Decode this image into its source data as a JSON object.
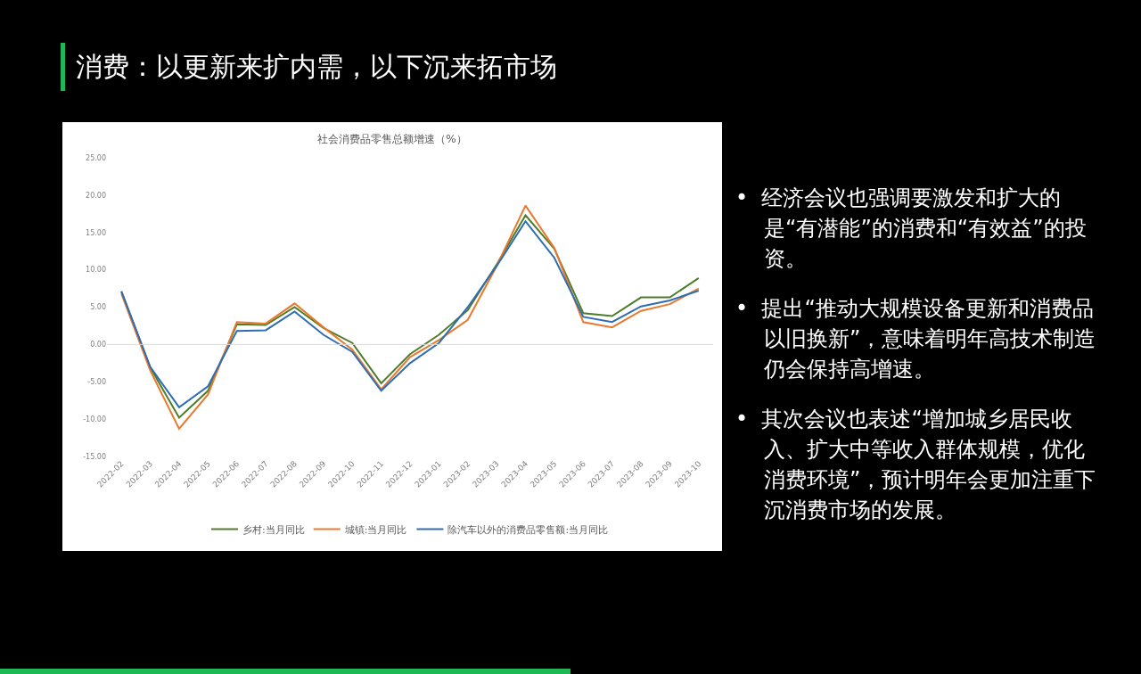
{
  "chart_data": [
    {
      "type": "line",
      "title": "消费：以更新来扩内需，以下沉来拓市场",
      "subtitle": "社会消费品零售总额增速（%）",
      "categories": [
        "2022-02",
        "2022-03",
        "2022-04",
        "2022-05",
        "2022-06",
        "2022-07",
        "2022-08",
        "2022-09",
        "2022-10",
        "2022-11",
        "2022-12",
        "2023-01",
        "2023-02",
        "2023-03",
        "2023-04",
        "2023-05",
        "2023-06",
        "2023-07",
        "2023-08",
        "2023-09",
        "2023-10"
      ],
      "series": [
        {
          "name": "乡村:当月同比",
          "color": "#4e7d2a",
          "values": [
            7.1,
            -3.1,
            -9.8,
            -6.2,
            2.7,
            2.6,
            5.0,
            2.2,
            0.2,
            -5.2,
            -1.3,
            1.3,
            4.6,
            10.7,
            17.3,
            12.8,
            4.2,
            3.8,
            6.3,
            6.3,
            8.9
          ]
        },
        {
          "name": "城镇:当月同比",
          "color": "#e8792e",
          "values": [
            6.8,
            -3.5,
            -11.3,
            -6.7,
            3.0,
            2.8,
            5.5,
            2.3,
            -0.7,
            -6.0,
            -1.7,
            0.6,
            3.3,
            10.5,
            18.6,
            12.9,
            3.0,
            2.3,
            4.5,
            5.4,
            7.5
          ]
        },
        {
          "name": "除汽车以外的消费品零售额:当月同比",
          "color": "#2e6db4",
          "values": [
            7.1,
            -3.0,
            -8.4,
            -5.6,
            1.8,
            1.9,
            4.4,
            1.3,
            -1.0,
            -6.2,
            -2.5,
            0.2,
            5.0,
            10.5,
            16.5,
            11.6,
            3.7,
            3.0,
            5.1,
            5.9,
            7.2
          ]
        }
      ],
      "ylim": [
        -15,
        25
      ],
      "yticks": [
        {
          "value": -15,
          "label": "-15.00"
        },
        {
          "value": -10,
          "label": "-10.00"
        },
        {
          "value": -5,
          "label": "-5.00"
        },
        {
          "value": 0,
          "label": "0.00"
        },
        {
          "value": 5,
          "label": "5.00"
        },
        {
          "value": 10,
          "label": "10.00"
        },
        {
          "value": 15,
          "label": "15.00"
        },
        {
          "value": 20,
          "label": "20.00"
        },
        {
          "value": 25,
          "label": "25.00"
        }
      ],
      "ref_lines": [
        {
          "axis": "y",
          "value": 0,
          "color": "#d9d9d9"
        }
      ],
      "grid": false,
      "legend": "bottom",
      "marker": "none",
      "line_style": "solid"
    },
    {
      "type": "other",
      "annotations": [
        "•  经济会议也强调要激发和扩大的是“有潜能”的消费和“有效益”的投资。",
        "•  提出“推动大规模设备更新和消费品以旧换新”，意味着明年高技术制造仍会保持高增速。",
        "•  其次会议也表述“增加城乡居民收入、扩大中等收入群体规模，优化消费环境”，预计明年会更加注重下沉消费市场的发展。"
      ]
    }
  ]
}
